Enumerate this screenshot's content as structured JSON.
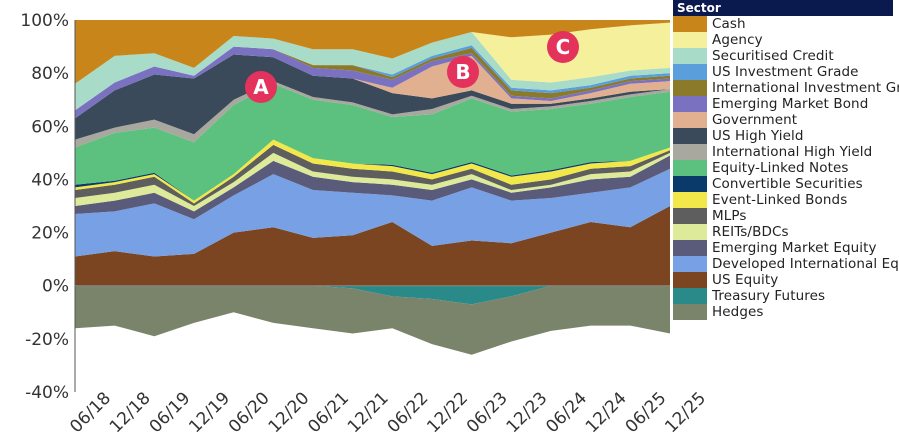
{
  "chart_data": {
    "type": "area",
    "stacked": true,
    "title": "",
    "xlabel": "",
    "ylabel": "",
    "ylim": [
      -40,
      100
    ],
    "y_ticks": [
      "100%",
      "80%",
      "60%",
      "40%",
      "20%",
      "0%",
      "-20%",
      "-40%"
    ],
    "y_tick_values": [
      100,
      80,
      60,
      40,
      20,
      0,
      -20,
      -40
    ],
    "categories": [
      "06/18",
      "12/18",
      "06/19",
      "12/19",
      "06/20",
      "12/20",
      "06/21",
      "12/21",
      "06/22",
      "12/22",
      "06/23",
      "12/23",
      "06/24",
      "12/24",
      "06/25",
      "12/25"
    ],
    "legend_title": "Sector",
    "legend_position": "right",
    "annotations": [
      {
        "label": "A",
        "x": "09/20",
        "y": 77
      },
      {
        "label": "B",
        "x": "03/23",
        "y": 80
      },
      {
        "label": "C",
        "x": "03/24",
        "y": 90
      }
    ],
    "annotation_color": "#e3325c",
    "series": [
      {
        "name": "Cash",
        "color": "#c8861a",
        "values": [
          24,
          13.5,
          12.5,
          18,
          6,
          7,
          11,
          11,
          14.5,
          8.5,
          4.5,
          6.5,
          5.5,
          3.5,
          2,
          1
        ]
      },
      {
        "name": "Agency",
        "color": "#f4f09c",
        "values": [
          0,
          0,
          0,
          0,
          0,
          0,
          0,
          0,
          0,
          0,
          0,
          16,
          18,
          18,
          17,
          17
        ]
      },
      {
        "name": "Securitised Credit",
        "color": "#a8dcc8",
        "values": [
          10,
          10,
          5,
          3,
          4,
          4,
          6,
          6,
          6,
          5,
          5,
          3,
          3,
          3,
          2,
          2
        ]
      },
      {
        "name": "US Investment Grade",
        "color": "#5a9fdc",
        "values": [
          0,
          0,
          0,
          0,
          0,
          0,
          0,
          0,
          1,
          1,
          1,
          1,
          1,
          1,
          1,
          1
        ]
      },
      {
        "name": "International Investment Grade",
        "color": "#8a7a2a",
        "values": [
          0,
          0,
          0,
          0,
          0,
          0,
          1,
          2,
          1,
          1,
          2,
          2,
          2,
          1,
          1,
          1
        ]
      },
      {
        "name": "Emerging Market Bond",
        "color": "#7a72c0",
        "values": [
          3,
          3,
          3,
          1,
          3,
          3,
          3,
          3,
          3,
          2,
          1,
          1,
          1,
          1,
          1,
          1
        ]
      },
      {
        "name": "Government",
        "color": "#e0b090",
        "values": [
          0,
          0,
          0,
          0,
          0,
          0,
          0,
          0,
          2,
          12,
          13,
          2,
          1,
          2,
          3,
          3
        ]
      },
      {
        "name": "US High Yield",
        "color": "#3a4a5a",
        "values": [
          8,
          14,
          17,
          21,
          17,
          9,
          8,
          9,
          8,
          4,
          2,
          2,
          1,
          1,
          1,
          0
        ]
      },
      {
        "name": "International High Yield",
        "color": "#a8a89e",
        "values": [
          3,
          2,
          3,
          3,
          2,
          1,
          1,
          1,
          1,
          2,
          1,
          1,
          1,
          1,
          1,
          1
        ]
      },
      {
        "name": "Equity-Linked Notes",
        "color": "#5cc07e",
        "values": [
          14,
          18,
          17,
          22,
          26,
          21,
          22,
          22,
          18,
          22,
          24,
          24,
          23,
          22,
          24,
          21
        ]
      },
      {
        "name": "Convertible Securities",
        "color": "#0a3a6a",
        "values": [
          1,
          0.5,
          0.5,
          0,
          0,
          0,
          0,
          0,
          0.5,
          0.5,
          0.5,
          0.5,
          0.5,
          0.5,
          0,
          0
        ]
      },
      {
        "name": "Event-Linked Bonds",
        "color": "#f2e84a",
        "values": [
          1,
          1,
          1,
          1,
          1,
          2,
          2,
          2,
          2,
          2,
          2,
          3,
          3,
          2,
          2,
          1
        ]
      },
      {
        "name": "MLPs",
        "color": "#5e5e5e",
        "values": [
          3,
          3,
          3,
          1,
          2,
          3,
          3,
          3,
          3,
          2,
          2,
          2,
          2,
          2,
          2,
          1
        ]
      },
      {
        "name": "REITs/BDCs",
        "color": "#dcea9a",
        "values": [
          3,
          3,
          3,
          2,
          2,
          3,
          2,
          2,
          2,
          2,
          2,
          1,
          1,
          2,
          2,
          1
        ]
      },
      {
        "name": "Emerging Market Equity",
        "color": "#5a5a7a",
        "values": [
          3,
          4,
          4,
          3,
          3,
          5,
          5,
          4,
          4,
          4,
          3,
          3,
          4,
          5,
          4,
          5
        ]
      },
      {
        "name": "Developed International Equity",
        "color": "#78a0e4",
        "values": [
          16,
          15,
          20,
          13,
          14,
          20,
          18,
          16,
          10,
          17,
          20,
          16,
          13,
          11,
          15,
          14
        ]
      },
      {
        "name": "US Equity",
        "color": "#7a4520",
        "values": [
          11,
          13,
          11,
          12,
          20,
          22,
          18,
          19,
          24,
          15,
          17,
          16,
          20,
          24,
          22,
          30
        ]
      },
      {
        "name": "Treasury Futures",
        "color": "#2a8a8a",
        "values": [
          0,
          0,
          0,
          0,
          0,
          0,
          0,
          -1,
          -4,
          -5,
          -7,
          -4,
          0,
          0,
          0,
          0
        ]
      },
      {
        "name": "Hedges",
        "color": "#7a846a",
        "values": [
          -16,
          -15,
          -19,
          -14,
          -10,
          -14,
          -16,
          -17,
          -12,
          -17,
          -19,
          -17,
          -17,
          -15,
          -15,
          -18
        ]
      }
    ]
  }
}
